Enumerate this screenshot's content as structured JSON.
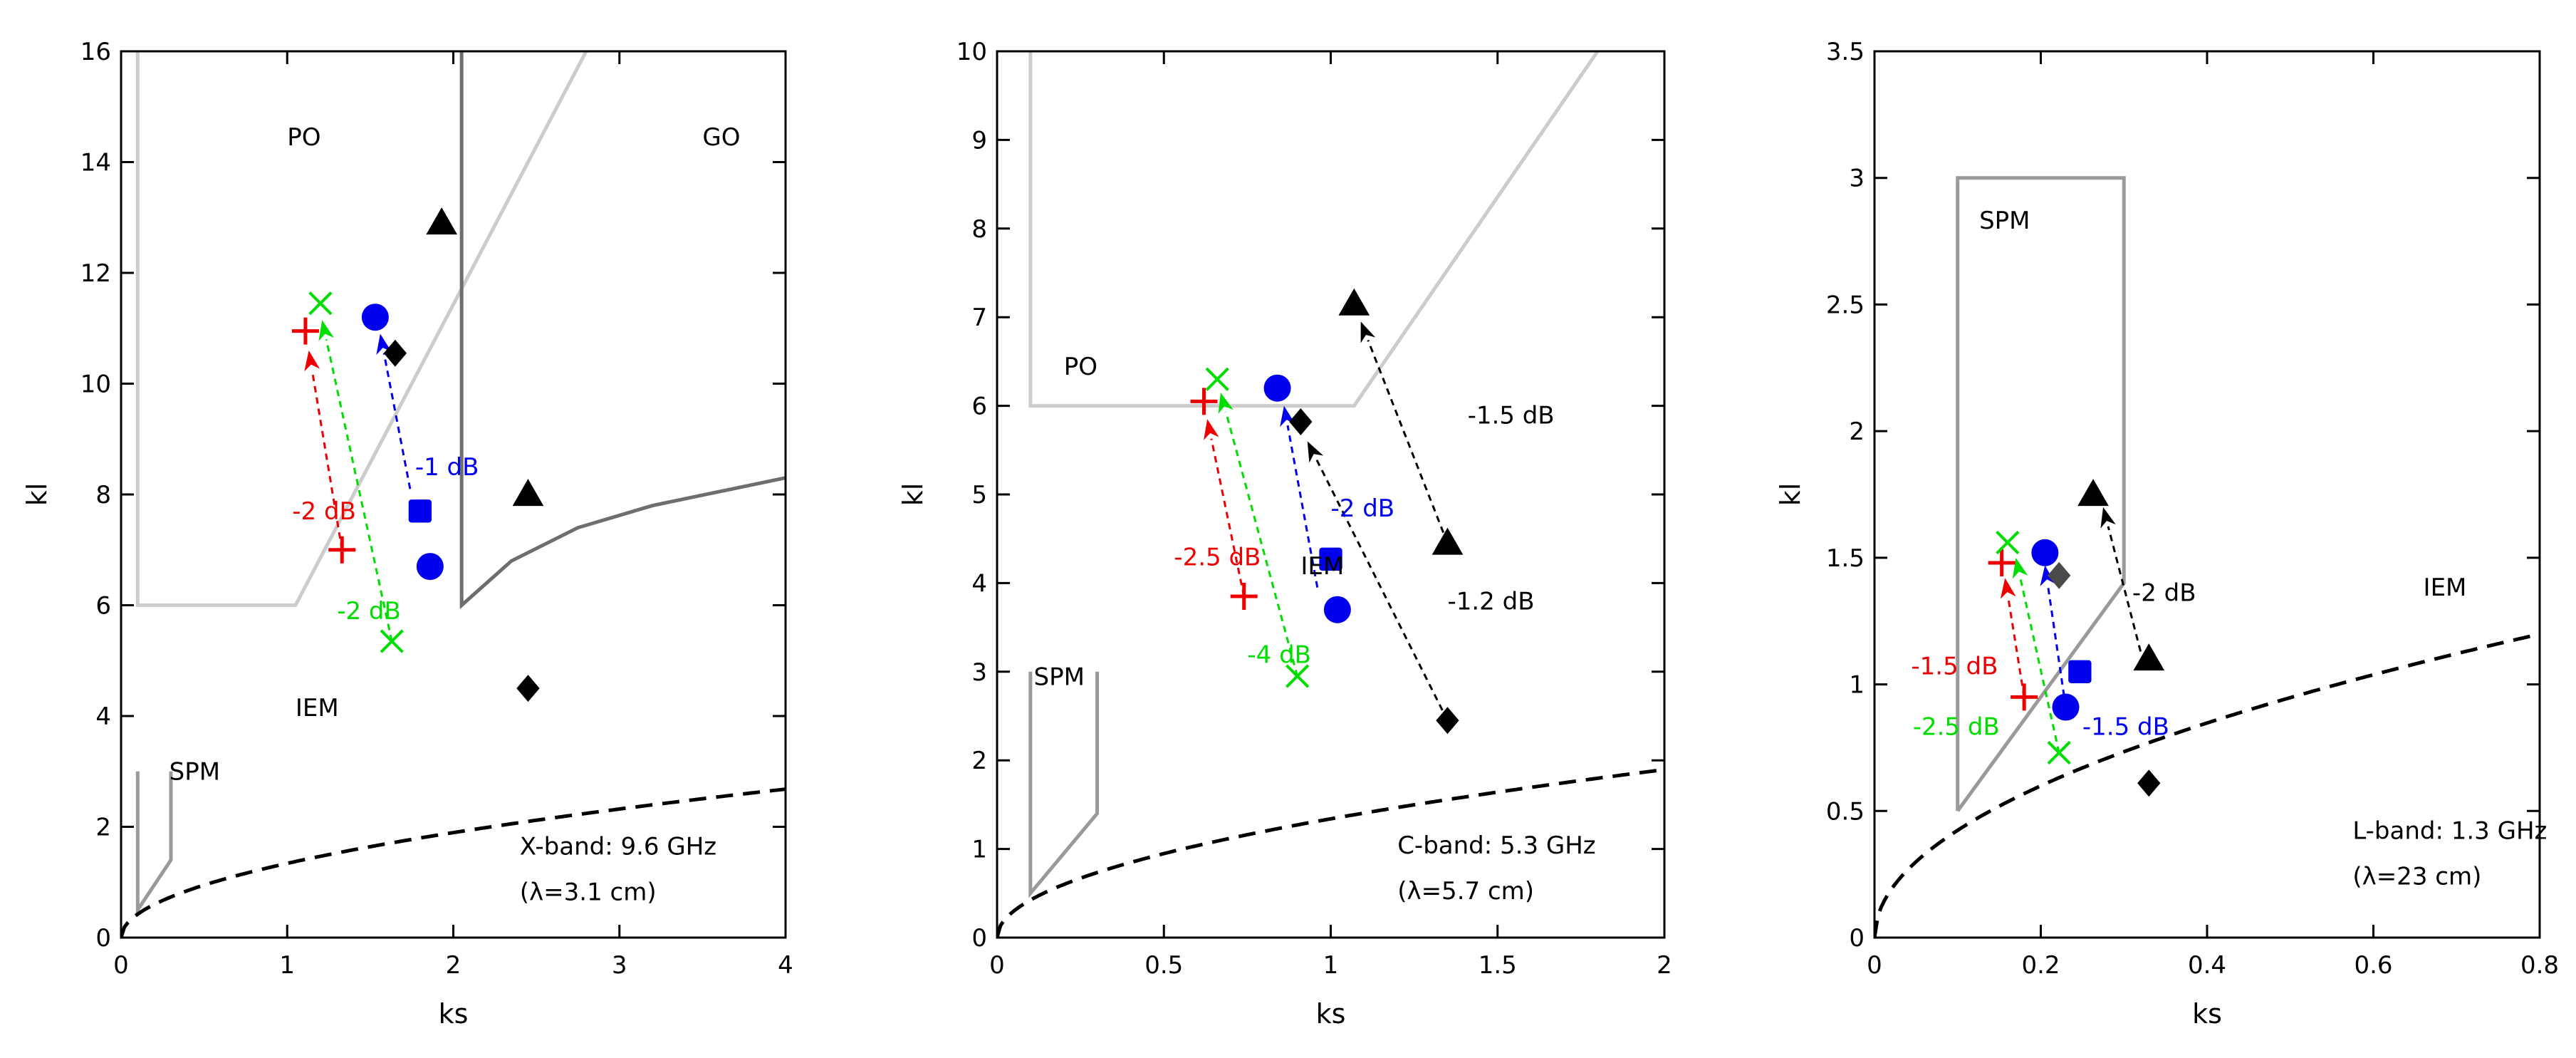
{
  "chart_data": [
    {
      "type": "scatter",
      "xlabel": "ks",
      "ylabel": "kl",
      "xlim": [
        0,
        4
      ],
      "ylim": [
        0,
        16
      ],
      "xticks": [
        0,
        1,
        2,
        3,
        4
      ],
      "xtick_labels": [
        "0",
        "1",
        "2",
        "3",
        "4"
      ],
      "yticks": [
        0,
        2,
        4,
        6,
        8,
        10,
        12,
        14,
        16
      ],
      "ytick_labels": [
        "0",
        "2",
        "4",
        "6",
        "8",
        "10",
        "12",
        "14",
        "16"
      ],
      "grid": false,
      "regions": [
        {
          "kind": "poly",
          "color": "#cccccc",
          "points": [
            [
              0.1,
              16
            ],
            [
              0.1,
              6
            ],
            [
              1.05,
              6
            ],
            [
              2.8,
              16
            ]
          ]
        },
        {
          "kind": "poly",
          "color": "#6e6e6e",
          "points": [
            [
              2.05,
              16
            ],
            [
              2.05,
              6
            ],
            [
              2.35,
              6.8
            ],
            [
              2.75,
              7.4
            ],
            [
              3.2,
              7.8
            ],
            [
              3.6,
              8.05
            ],
            [
              4.0,
              8.3
            ]
          ]
        },
        {
          "kind": "poly",
          "color": "#9a9a9a",
          "points": [
            [
              0.1,
              3
            ],
            [
              0.1,
              0.5
            ],
            [
              0.3,
              1.4
            ],
            [
              0.3,
              3
            ]
          ]
        }
      ],
      "boundary_curve": {
        "coef": 1.34,
        "exp": 0.5
      },
      "region_labels": [
        {
          "text": "PO",
          "x": 1.0,
          "y": 14.3
        },
        {
          "text": "GO",
          "x": 3.5,
          "y": 14.3
        },
        {
          "text": "IEM",
          "x": 1.05,
          "y": 4.0
        },
        {
          "text": "SPM",
          "x": 0.29,
          "y": 2.85
        }
      ],
      "band_text": [
        "X-band: 9.6 GHz",
        "(λ=3.1 cm)"
      ],
      "band_text_pos": [
        2.4,
        1.5
      ],
      "points": [
        {
          "marker": "triangle",
          "color": "#000000",
          "x": 1.93,
          "y": 12.9
        },
        {
          "marker": "triangle",
          "color": "#000000",
          "x": 2.45,
          "y": 8.0
        },
        {
          "marker": "diamond",
          "color": "#000000",
          "x": 1.65,
          "y": 10.55
        },
        {
          "marker": "diamond",
          "color": "#000000",
          "x": 2.45,
          "y": 4.5
        },
        {
          "marker": "circle",
          "color": "#0000ee",
          "x": 1.53,
          "y": 11.2
        },
        {
          "marker": "circle",
          "color": "#0000ee",
          "x": 1.86,
          "y": 6.7
        },
        {
          "marker": "square",
          "color": "#0000ee",
          "x": 1.8,
          "y": 7.7
        },
        {
          "marker": "plus",
          "color": "#ee0000",
          "x": 1.11,
          "y": 10.95
        },
        {
          "marker": "plus",
          "color": "#ee0000",
          "x": 1.33,
          "y": 7.0
        },
        {
          "marker": "cross",
          "color": "#00dd00",
          "x": 1.2,
          "y": 11.45
        },
        {
          "marker": "cross",
          "color": "#00dd00",
          "x": 1.63,
          "y": 5.35
        }
      ],
      "arrows": [
        {
          "color": "#ee0000",
          "from": [
            1.33,
            7.0
          ],
          "to": [
            1.13,
            10.6
          ]
        },
        {
          "color": "#00dd00",
          "from": [
            1.63,
            5.35
          ],
          "to": [
            1.21,
            11.15
          ]
        },
        {
          "color": "#0000ee",
          "from": [
            1.74,
            8.1
          ],
          "to": [
            1.56,
            10.9
          ]
        }
      ],
      "annotations": [
        {
          "text": "-2 dB",
          "color": "#ee0000",
          "x": 1.03,
          "y": 7.55
        },
        {
          "text": "-2 dB",
          "color": "#00dd00",
          "x": 1.3,
          "y": 5.75
        },
        {
          "text": "-1 dB",
          "color": "#0000ee",
          "x": 1.77,
          "y": 8.35
        }
      ]
    },
    {
      "type": "scatter",
      "xlabel": "ks",
      "ylabel": "kl",
      "xlim": [
        0,
        2
      ],
      "ylim": [
        0,
        10
      ],
      "xticks": [
        0,
        0.5,
        1,
        1.5,
        2
      ],
      "xtick_labels": [
        "0",
        "0.5",
        "1",
        "1.5",
        "2"
      ],
      "yticks": [
        0,
        1,
        2,
        3,
        4,
        5,
        6,
        7,
        8,
        9,
        10
      ],
      "ytick_labels": [
        "0",
        "1",
        "2",
        "3",
        "4",
        "5",
        "6",
        "7",
        "8",
        "9",
        "10"
      ],
      "grid": false,
      "regions": [
        {
          "kind": "poly",
          "color": "#cccccc",
          "points": [
            [
              0.1,
              10
            ],
            [
              0.1,
              6
            ],
            [
              1.07,
              6
            ],
            [
              1.8,
              10
            ]
          ]
        },
        {
          "kind": "poly",
          "color": "#9a9a9a",
          "points": [
            [
              0.1,
              3
            ],
            [
              0.1,
              0.5
            ],
            [
              0.3,
              1.4
            ],
            [
              0.3,
              3
            ]
          ]
        }
      ],
      "boundary_curve": {
        "coef": 1.34,
        "exp": 0.5
      },
      "region_labels": [
        {
          "text": "PO",
          "x": 0.2,
          "y": 6.35
        },
        {
          "text": "IEM",
          "x": 0.91,
          "y": 4.1
        },
        {
          "text": "SPM",
          "x": 0.11,
          "y": 2.85
        }
      ],
      "band_text": [
        "C-band: 5.3 GHz",
        "(λ=5.7 cm)"
      ],
      "band_text_pos": [
        1.2,
        0.95
      ],
      "points": [
        {
          "marker": "triangle",
          "color": "#000000",
          "x": 1.07,
          "y": 7.15
        },
        {
          "marker": "triangle",
          "color": "#000000",
          "x": 1.35,
          "y": 4.45
        },
        {
          "marker": "diamond",
          "color": "#000000",
          "x": 0.91,
          "y": 5.82
        },
        {
          "marker": "diamond",
          "color": "#000000",
          "x": 1.35,
          "y": 2.45
        },
        {
          "marker": "circle",
          "color": "#0000ee",
          "x": 0.84,
          "y": 6.2
        },
        {
          "marker": "circle",
          "color": "#0000ee",
          "x": 1.02,
          "y": 3.7
        },
        {
          "marker": "square",
          "color": "#0000ee",
          "x": 1.0,
          "y": 4.27
        },
        {
          "marker": "plus",
          "color": "#ee0000",
          "x": 0.62,
          "y": 6.05
        },
        {
          "marker": "plus",
          "color": "#ee0000",
          "x": 0.74,
          "y": 3.85
        },
        {
          "marker": "cross",
          "color": "#00dd00",
          "x": 0.66,
          "y": 6.3
        },
        {
          "marker": "cross",
          "color": "#00dd00",
          "x": 0.9,
          "y": 2.95
        }
      ],
      "arrows": [
        {
          "color": "#ee0000",
          "from": [
            0.74,
            3.85
          ],
          "to": [
            0.63,
            5.85
          ]
        },
        {
          "color": "#00dd00",
          "from": [
            0.9,
            2.95
          ],
          "to": [
            0.67,
            6.15
          ]
        },
        {
          "color": "#0000ee",
          "from": [
            0.96,
            3.95
          ],
          "to": [
            0.86,
            6.0
          ]
        },
        {
          "color": "#000000",
          "from": [
            1.35,
            2.45
          ],
          "to": [
            0.93,
            5.6
          ]
        },
        {
          "color": "#000000",
          "from": [
            1.35,
            4.45
          ],
          "to": [
            1.09,
            6.95
          ]
        }
      ],
      "annotations": [
        {
          "text": "-2.5 dB",
          "color": "#ee0000",
          "x": 0.53,
          "y": 4.2
        },
        {
          "text": "-4 dB",
          "color": "#00dd00",
          "x": 0.75,
          "y": 3.1
        },
        {
          "text": "-2 dB",
          "color": "#0000ee",
          "x": 1.0,
          "y": 4.75
        },
        {
          "text": "-1.2 dB",
          "color": "#000000",
          "x": 1.35,
          "y": 3.7
        },
        {
          "text": "-1.5 dB",
          "color": "#000000",
          "x": 1.41,
          "y": 5.8
        }
      ]
    },
    {
      "type": "scatter",
      "xlabel": "ks",
      "ylabel": "kl",
      "xlim": [
        0,
        0.8
      ],
      "ylim": [
        0,
        3.5
      ],
      "xticks": [
        0,
        0.2,
        0.4,
        0.6,
        0.8
      ],
      "xtick_labels": [
        "0",
        "0.2",
        "0.4",
        "0.6",
        "0.8"
      ],
      "yticks": [
        0,
        0.5,
        1,
        1.5,
        2,
        2.5,
        3,
        3.5
      ],
      "ytick_labels": [
        "0",
        "0.5",
        "1",
        "1.5",
        "2",
        "2.5",
        "3",
        "3.5"
      ],
      "grid": false,
      "regions": [
        {
          "kind": "poly",
          "color": "#9a9a9a",
          "points": [
            [
              0.1,
              0.5
            ],
            [
              0.1,
              3.0
            ],
            [
              0.3,
              3.0
            ],
            [
              0.3,
              1.4
            ],
            [
              0.1,
              0.5
            ]
          ]
        }
      ],
      "boundary_curve": {
        "coef": 1.34,
        "exp": 0.5
      },
      "region_labels": [
        {
          "text": "SPM",
          "x": 0.126,
          "y": 2.8
        },
        {
          "text": "IEM",
          "x": 0.66,
          "y": 1.35
        }
      ],
      "band_text": [
        "L-band: 1.3 GHz",
        "(λ=23 cm)"
      ],
      "band_text_pos": [
        0.575,
        0.39
      ],
      "points": [
        {
          "marker": "triangle",
          "color": "#000000",
          "x": 0.263,
          "y": 1.75
        },
        {
          "marker": "triangle",
          "color": "#000000",
          "x": 0.33,
          "y": 1.1
        },
        {
          "marker": "diamond",
          "color": "#4a4a4a",
          "x": 0.222,
          "y": 1.43
        },
        {
          "marker": "diamond",
          "color": "#000000",
          "x": 0.33,
          "y": 0.61
        },
        {
          "marker": "circle",
          "color": "#0000ee",
          "x": 0.205,
          "y": 1.52
        },
        {
          "marker": "circle",
          "color": "#0000ee",
          "x": 0.23,
          "y": 0.91
        },
        {
          "marker": "square",
          "color": "#0000ee",
          "x": 0.247,
          "y": 1.05
        },
        {
          "marker": "plus",
          "color": "#ee0000",
          "x": 0.153,
          "y": 1.48
        },
        {
          "marker": "plus",
          "color": "#ee0000",
          "x": 0.18,
          "y": 0.95
        },
        {
          "marker": "cross",
          "color": "#00dd00",
          "x": 0.16,
          "y": 1.56
        },
        {
          "marker": "cross",
          "color": "#00dd00",
          "x": 0.222,
          "y": 0.73
        }
      ],
      "arrows": [
        {
          "color": "#ee0000",
          "from": [
            0.18,
            0.95
          ],
          "to": [
            0.157,
            1.42
          ]
        },
        {
          "color": "#00dd00",
          "from": [
            0.222,
            0.73
          ],
          "to": [
            0.17,
            1.5
          ]
        },
        {
          "color": "#0000ee",
          "from": [
            0.23,
            0.91
          ],
          "to": [
            0.205,
            1.47
          ]
        },
        {
          "color": "#000000",
          "from": [
            0.32,
            1.13
          ],
          "to": [
            0.275,
            1.7
          ]
        }
      ],
      "annotations": [
        {
          "text": "-1.5 dB",
          "color": "#ee0000",
          "x": 0.044,
          "y": 1.04
        },
        {
          "text": "-2.5 dB",
          "color": "#00dd00",
          "x": 0.046,
          "y": 0.8
        },
        {
          "text": "-1.5 dB",
          "color": "#0000ee",
          "x": 0.25,
          "y": 0.8
        },
        {
          "text": "-2 dB",
          "color": "#000000",
          "x": 0.31,
          "y": 1.33
        }
      ]
    }
  ]
}
